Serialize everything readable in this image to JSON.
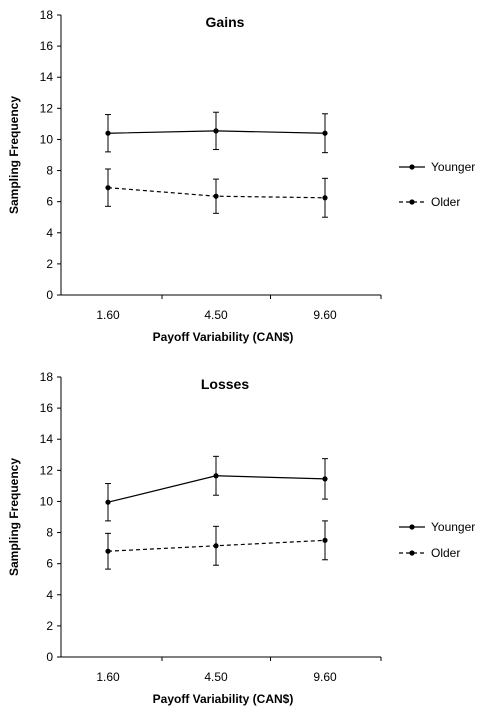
{
  "chart_data": [
    {
      "type": "line",
      "title": "Gains",
      "xlabel": "Payoff Variability (CAN$)",
      "ylabel": "Sampling Frequency",
      "categories": [
        "1.60",
        "4.50",
        "9.60"
      ],
      "yticks": [
        "0",
        "2",
        "4",
        "6",
        "8",
        "10",
        "12",
        "14",
        "16",
        "18"
      ],
      "ylim": [
        0,
        18
      ],
      "grid": false,
      "legend": "right",
      "series": [
        {
          "name": "Younger",
          "style": "solid",
          "color": "#000000",
          "values": [
            10.4,
            10.55,
            10.4
          ],
          "error": [
            1.2,
            1.2,
            1.25
          ]
        },
        {
          "name": "Older",
          "style": "dashed",
          "color": "#000000",
          "values": [
            6.9,
            6.35,
            6.25
          ],
          "error": [
            1.2,
            1.1,
            1.25
          ]
        }
      ]
    },
    {
      "type": "line",
      "title": "Losses",
      "xlabel": "Payoff Variability (CAN$)",
      "ylabel": "Sampling Frequency",
      "categories": [
        "1.60",
        "4.50",
        "9.60"
      ],
      "yticks": [
        "0",
        "2",
        "4",
        "6",
        "8",
        "10",
        "12",
        "14",
        "16",
        "18"
      ],
      "ylim": [
        0,
        18
      ],
      "grid": false,
      "legend": "right",
      "series": [
        {
          "name": "Younger",
          "style": "solid",
          "color": "#000000",
          "values": [
            9.95,
            11.65,
            11.45
          ],
          "error": [
            1.2,
            1.25,
            1.3
          ]
        },
        {
          "name": "Older",
          "style": "dashed",
          "color": "#000000",
          "values": [
            6.8,
            7.15,
            7.5
          ],
          "error": [
            1.15,
            1.25,
            1.25
          ]
        }
      ]
    }
  ]
}
